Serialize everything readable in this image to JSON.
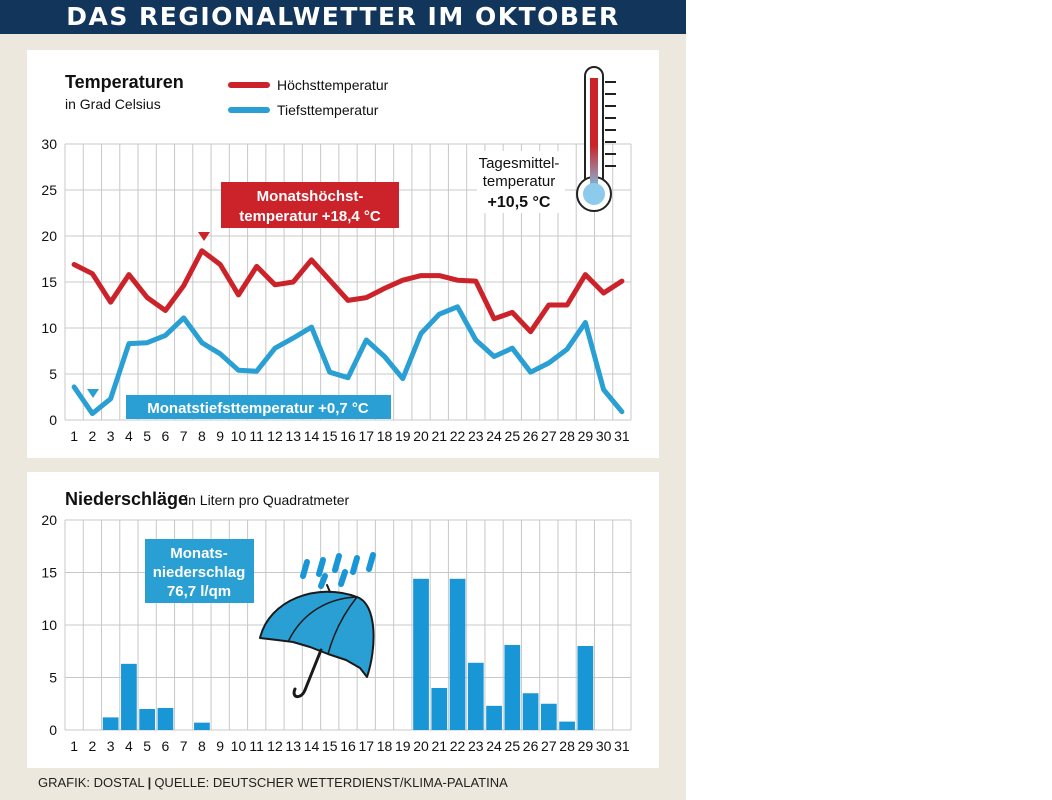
{
  "banner": {
    "title": "DAS REGIONALWETTER IM OKTOBER"
  },
  "colors": {
    "high": "#cc2229",
    "low": "#2a9fd4",
    "banner": "#12355b",
    "bars": "#1896d6"
  },
  "temperature_panel": {
    "title": "Temperaturen",
    "subtitle": "in Grad Celsius",
    "legend_high": "Höchsttemperatur",
    "legend_low": "Tiefsttemperatur",
    "max_box": [
      "Monatshöchst-",
      "temperatur +18,4 °C"
    ],
    "min_box": "Monatstiefsttemperatur +0,7 °C",
    "mean_label": [
      "Tagesmittel-",
      "temperatur"
    ],
    "mean_value": "+10,5 °C",
    "thermometer_icon": "thermometer-icon",
    "marker_icon": "triangle-marker-icon"
  },
  "rain_panel": {
    "title": "Niederschläge",
    "subtitle": "in Litern pro Quadratmeter",
    "total_box": [
      "Monats-",
      "niederschlag",
      "76,7 l/qm"
    ],
    "umbrella_icon": "umbrella-rain-icon"
  },
  "footer": {
    "left": "GRAFIK: DOSTAL",
    "right": "QUELLE: DEUTSCHER WETTERDIENST/KLIMA-PALATINA"
  },
  "chart_data": [
    {
      "type": "line",
      "title": "Temperaturen",
      "subtitle": "in Grad Celsius",
      "x": [
        1,
        2,
        3,
        4,
        5,
        6,
        7,
        8,
        9,
        10,
        11,
        12,
        13,
        14,
        15,
        16,
        17,
        18,
        19,
        20,
        21,
        22,
        23,
        24,
        25,
        26,
        27,
        28,
        29,
        30,
        31
      ],
      "ylim": [
        0,
        30
      ],
      "yticks": [
        0,
        5,
        10,
        15,
        20,
        25,
        30
      ],
      "grid": true,
      "legend": "top",
      "series": [
        {
          "name": "Höchsttemperatur",
          "color": "#cc2229",
          "values": [
            16.9,
            15.9,
            12.8,
            15.8,
            13.3,
            11.9,
            14.6,
            18.4,
            16.9,
            13.6,
            16.7,
            14.7,
            15.0,
            17.4,
            15.2,
            13.0,
            13.3,
            14.3,
            15.2,
            15.7,
            15.7,
            15.2,
            15.1,
            11.0,
            11.7,
            9.6,
            12.5,
            12.5,
            15.8,
            13.8,
            15.1
          ]
        },
        {
          "name": "Tiefsttemperatur",
          "color": "#2a9fd4",
          "values": [
            3.6,
            0.7,
            2.3,
            8.3,
            8.4,
            9.2,
            11.1,
            8.4,
            7.2,
            5.4,
            5.3,
            7.8,
            8.9,
            10.1,
            5.2,
            4.6,
            8.7,
            6.9,
            4.5,
            9.4,
            11.5,
            12.3,
            8.7,
            6.9,
            7.8,
            5.2,
            6.2,
            7.7,
            10.6,
            3.3,
            0.9
          ]
        }
      ]
    },
    {
      "type": "bar",
      "title": "Niederschläge",
      "subtitle": "in Litern pro Quadratmeter",
      "categories": [
        1,
        2,
        3,
        4,
        5,
        6,
        7,
        8,
        9,
        10,
        11,
        12,
        13,
        14,
        15,
        16,
        17,
        18,
        19,
        20,
        21,
        22,
        23,
        24,
        25,
        26,
        27,
        28,
        29,
        30,
        31
      ],
      "values": [
        0,
        0,
        1.2,
        6.3,
        2.0,
        2.1,
        0,
        0.7,
        0,
        0,
        0,
        0,
        0,
        0,
        0,
        0,
        0,
        0,
        0,
        14.4,
        4.0,
        14.4,
        6.4,
        2.3,
        8.1,
        3.5,
        2.5,
        0.8,
        8.0,
        0,
        0
      ],
      "ylim": [
        0,
        20
      ],
      "yticks": [
        0,
        5,
        10,
        15,
        20
      ],
      "grid": true,
      "color": "#1896d6"
    }
  ]
}
